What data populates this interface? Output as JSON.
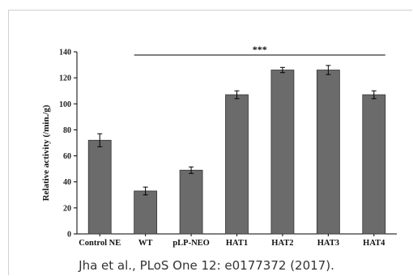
{
  "chart_data": {
    "type": "bar",
    "categories": [
      "Control NE",
      "WT",
      "pLP-NEO",
      "HAT1",
      "HAT2",
      "HAT3",
      "HAT4"
    ],
    "values": [
      72,
      33,
      49,
      107,
      126,
      126,
      107
    ],
    "errors": [
      5,
      3,
      2.5,
      3,
      2,
      3.5,
      3
    ],
    "ylabel": "Relative activity (/min./g)",
    "xlabel": "",
    "ylim": [
      0,
      140
    ],
    "yticks": [
      0,
      20,
      40,
      60,
      80,
      100,
      120,
      140
    ],
    "bar_color": "#6b6b6b",
    "significance": {
      "label": "***",
      "from_category": "WT",
      "to_category": "HAT4"
    },
    "grid": false
  },
  "caption": "Jha et al., PLoS One 12: e0177372 (2017)."
}
